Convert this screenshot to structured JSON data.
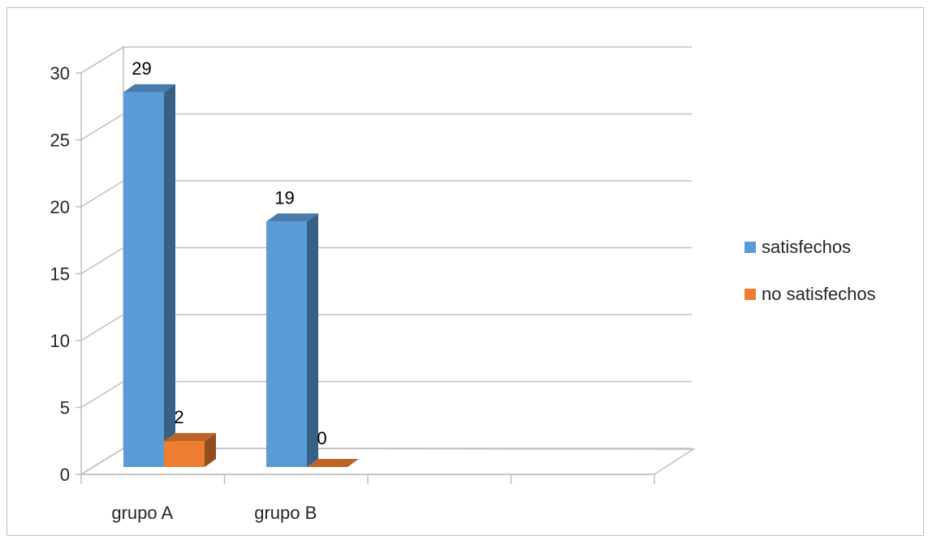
{
  "chart_data": {
    "type": "bar",
    "categories": [
      "grupo A",
      "grupo B",
      "",
      ""
    ],
    "series": [
      {
        "name": "satisfechos",
        "color": "#5b9bd5",
        "values": [
          29,
          19,
          null,
          null
        ]
      },
      {
        "name": "no satisfechos",
        "color": "#ed7d31",
        "values": [
          2,
          0,
          null,
          null
        ]
      }
    ],
    "data_labels": [
      [
        "29",
        "19"
      ],
      [
        "2",
        "0"
      ]
    ],
    "y_ticks": [
      "0",
      "5",
      "10",
      "15",
      "20",
      "25",
      "30"
    ],
    "ylim": [
      0,
      30
    ],
    "grid": true,
    "legend_position": "right",
    "style": "3d-clustered-column"
  }
}
